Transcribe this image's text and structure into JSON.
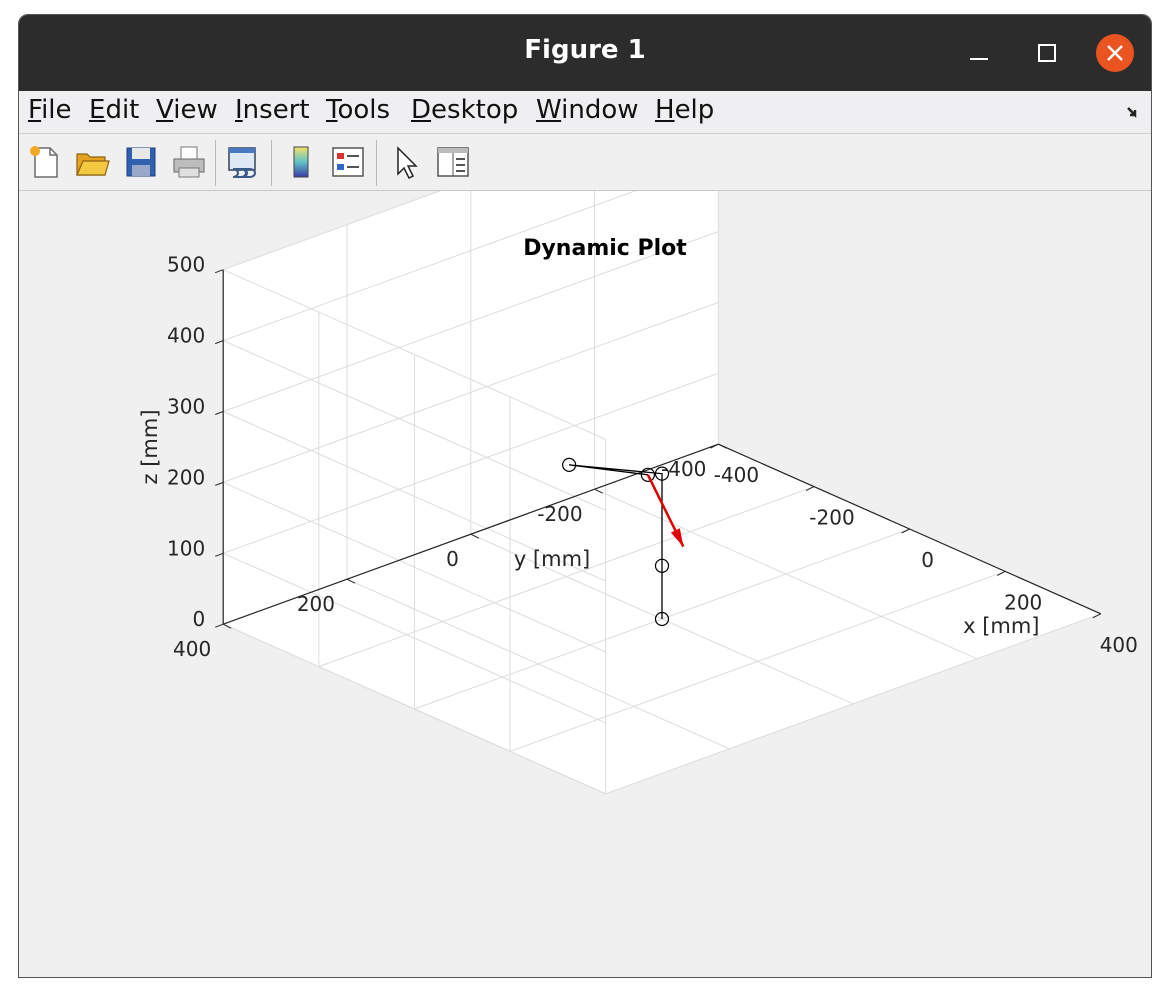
{
  "window": {
    "title": "Figure 1",
    "minimize_glyph": "–",
    "maximize_glyph": "☐",
    "close_glyph": "✕"
  },
  "menu": [
    {
      "label": "File",
      "accel": "F",
      "rest": "ile"
    },
    {
      "label": "Edit",
      "accel": "E",
      "rest": "dit"
    },
    {
      "label": "View",
      "accel": "V",
      "rest": "iew"
    },
    {
      "label": "Insert",
      "accel": "I",
      "rest": "nsert"
    },
    {
      "label": "Tools",
      "accel": "T",
      "rest": "ools"
    },
    {
      "label": "Desktop",
      "accel": "D",
      "rest": "esktop"
    },
    {
      "label": "Window",
      "accel": "W",
      "rest": "indow"
    },
    {
      "label": "Help",
      "accel": "H",
      "rest": "elp"
    }
  ],
  "toolbar": {
    "icons": [
      "new-figure-icon",
      "open-file-icon",
      "save-icon",
      "print-icon",
      "link-plot-icon",
      "colorbar-icon",
      "legend-icon",
      "edit-plot-icon",
      "property-inspector-icon"
    ]
  },
  "colors": {
    "arrow": "#e00000",
    "link": "#000000",
    "grid": "#dcdcdc"
  },
  "chart_data": {
    "type": "line3d",
    "title": "Dynamic Plot",
    "xlabel": "x [mm]",
    "ylabel": "y [mm]",
    "zlabel": "z [mm]",
    "xlim": [
      -400,
      400
    ],
    "ylim": [
      -400,
      400
    ],
    "zlim": [
      0,
      500
    ],
    "xticks": [
      -400,
      -200,
      0,
      200,
      400
    ],
    "yticks": [
      -400,
      -200,
      0,
      200,
      400
    ],
    "zticks": [
      0,
      100,
      200,
      300,
      400,
      500
    ],
    "grid": true,
    "series": [
      {
        "marker": "circle",
        "points": [
          {
            "x": 0,
            "y": 0,
            "z": 0
          },
          {
            "x": 0,
            "y": 0,
            "z": 75
          },
          {
            "x": 0,
            "y": 0,
            "z": 205
          },
          {
            "x": 0,
            "y": 150,
            "z": 265
          },
          {
            "x": 100,
            "y": 100,
            "z": 265
          }
        ]
      }
    ],
    "arrow": {
      "start": {
        "x": 100,
        "y": 100,
        "z": 265
      },
      "end": {
        "x": 200,
        "y": 120,
        "z": 200
      }
    }
  }
}
